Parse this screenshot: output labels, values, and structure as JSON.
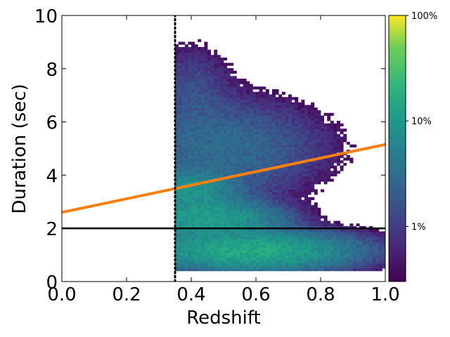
{
  "chart_data": {
    "type": "heatmap",
    "xlabel": "Redshift",
    "ylabel": "Duration (sec)",
    "xlim": [
      0.0,
      1.0
    ],
    "ylim": [
      0,
      10
    ],
    "x_ticks": [
      "0.0",
      "0.2",
      "0.4",
      "0.6",
      "0.8",
      "1.0"
    ],
    "x_tick_values": [
      0.0,
      0.2,
      0.4,
      0.6,
      0.8,
      1.0
    ],
    "y_ticks": [
      "0",
      "2",
      "4",
      "6",
      "8",
      "10"
    ],
    "y_tick_values": [
      0,
      2,
      4,
      6,
      8,
      10
    ],
    "grid": false,
    "colorbar": {
      "scale": "log",
      "colormap": "viridis",
      "ticks": [
        "1%",
        "10%",
        "100%"
      ],
      "tick_values": [
        0.01,
        0.1,
        1.0
      ],
      "range": [
        0.003,
        1.0
      ]
    },
    "heatmap_density": {
      "x_min": 0.35,
      "x_max": 1.0,
      "y_min": 0.4,
      "y_max": 10,
      "peak_regions": [
        {
          "x": 0.58,
          "y": 1.1,
          "level": "highest"
        },
        {
          "x": 0.45,
          "y": 2.3,
          "level": "high"
        },
        {
          "x": 0.4,
          "y": 3.3,
          "level": "medium"
        }
      ]
    },
    "lines": [
      {
        "style": "solid",
        "color": "#000000",
        "points": [
          [
            0.0,
            2.0
          ],
          [
            1.0,
            2.0
          ]
        ]
      },
      {
        "style": "solid",
        "color": "#ff7f0e",
        "points": [
          [
            0.0,
            2.6
          ],
          [
            1.0,
            5.15
          ]
        ]
      },
      {
        "style": "dotted",
        "color": "#000000",
        "points": [
          [
            0.35,
            0
          ],
          [
            0.35,
            10
          ]
        ]
      }
    ]
  }
}
